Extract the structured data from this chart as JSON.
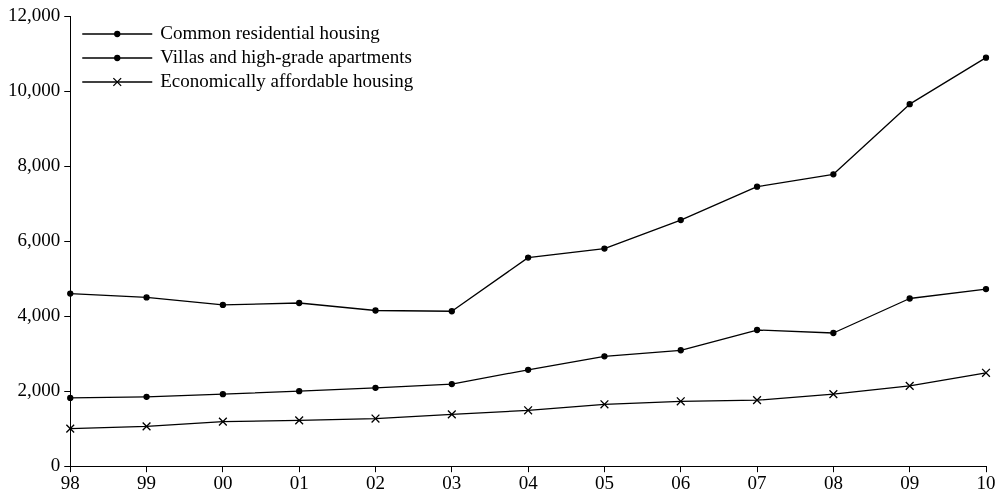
{
  "chart_data": {
    "type": "line",
    "categories": [
      "98",
      "99",
      "00",
      "01",
      "02",
      "03",
      "04",
      "05",
      "06",
      "07",
      "08",
      "09",
      "10"
    ],
    "series": [
      {
        "name": "Common residential housing",
        "color": "#000000",
        "marker": "circle",
        "values": [
          1820,
          1850,
          1920,
          2000,
          2090,
          2190,
          2570,
          2930,
          3090,
          3630,
          3550,
          4470,
          4720
        ]
      },
      {
        "name": "Villas and high-grade apartments",
        "color": "#000000",
        "marker": "circle",
        "values": [
          4600,
          4500,
          4300,
          4350,
          4150,
          4130,
          5560,
          5800,
          6560,
          7450,
          7780,
          9650,
          10890
        ]
      },
      {
        "name": "Economically affordable housing",
        "color": "#000000",
        "marker": "cross",
        "values": [
          1000,
          1060,
          1190,
          1220,
          1270,
          1380,
          1490,
          1650,
          1730,
          1760,
          1920,
          2140,
          2490
        ]
      }
    ],
    "ylim": [
      0,
      12000
    ],
    "yticks": [
      {
        "value": 0,
        "label": "0"
      },
      {
        "value": 2000,
        "label": "2,000"
      },
      {
        "value": 4000,
        "label": "4,000"
      },
      {
        "value": 6000,
        "label": "6,000"
      },
      {
        "value": 8000,
        "label": "8,000"
      },
      {
        "value": 10000,
        "label": "10,000"
      },
      {
        "value": 12000,
        "label": "12,000"
      }
    ],
    "grid": false,
    "legend": "top left",
    "line_style": "solid"
  }
}
